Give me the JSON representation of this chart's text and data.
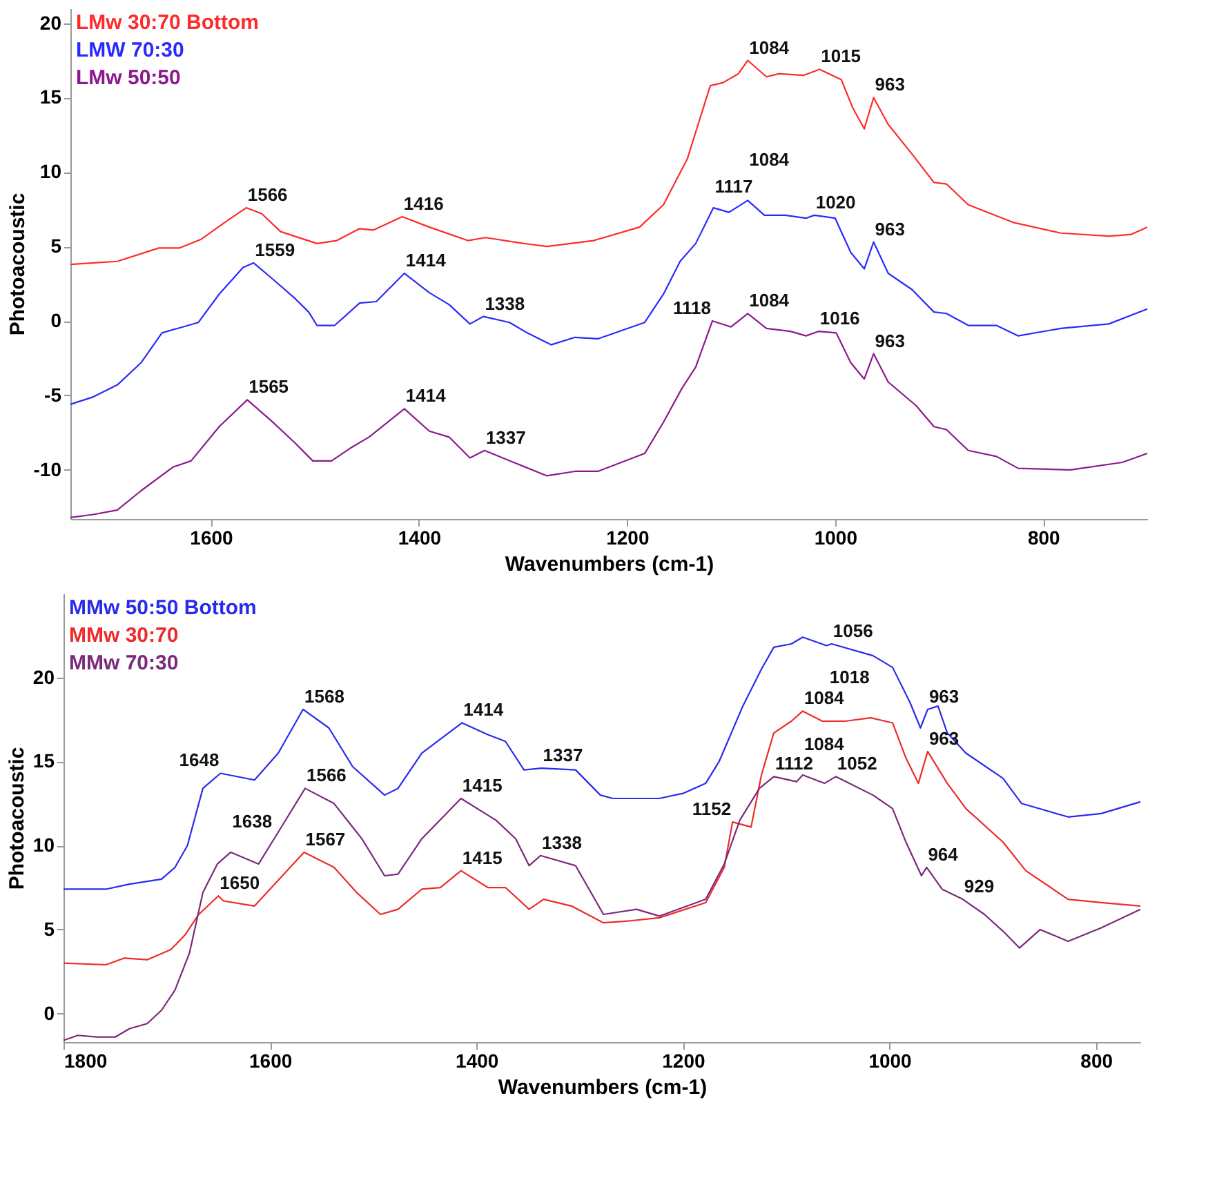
{
  "chart_data": [
    {
      "type": "line",
      "xlabel": "Wavenumbers (cm-1)",
      "ylabel": "Photoacoustic",
      "xlim": [
        1735,
        700
      ],
      "ylim": [
        -13.3,
        21
      ],
      "xticks": [
        1600,
        1400,
        1200,
        1000,
        800
      ],
      "yticks": [
        -10,
        -5,
        0,
        5,
        10,
        15,
        20
      ],
      "legend": "top left",
      "series": [
        {
          "name": "LMw 30:70 Bottom",
          "color": "#ff2a2a",
          "x": [
            1735,
            1690,
            1650,
            1630,
            1609,
            1587,
            1566,
            1551,
            1533,
            1498,
            1479,
            1457,
            1444,
            1416,
            1390,
            1353,
            1336,
            1299,
            1277,
            1232,
            1188,
            1165,
            1142,
            1120,
            1108,
            1093,
            1084,
            1066,
            1054,
            1030,
            1015,
            994,
            983,
            972,
            963,
            949,
            926,
            905,
            893,
            872,
            828,
            783,
            737,
            716,
            700
          ],
          "values": [
            3.8,
            4.0,
            4.9,
            4.9,
            5.5,
            6.6,
            7.6,
            7.2,
            6.0,
            5.2,
            5.4,
            6.2,
            6.1,
            7.0,
            6.3,
            5.4,
            5.6,
            5.2,
            5.0,
            5.4,
            6.3,
            7.8,
            10.9,
            15.8,
            16.0,
            16.6,
            17.5,
            16.4,
            16.6,
            16.5,
            16.9,
            16.2,
            14.3,
            12.9,
            15.0,
            13.2,
            11.2,
            9.3,
            9.2,
            7.8,
            6.6,
            5.9,
            5.7,
            5.8,
            6.3
          ]
        },
        {
          "name": "LMW 70:30",
          "color": "#2a2aff",
          "x": [
            1735,
            1713,
            1690,
            1667,
            1647,
            1627,
            1612,
            1592,
            1569,
            1559,
            1542,
            1519,
            1506,
            1498,
            1481,
            1457,
            1441,
            1414,
            1390,
            1371,
            1351,
            1338,
            1313,
            1296,
            1273,
            1250,
            1228,
            1183,
            1165,
            1149,
            1134,
            1117,
            1102,
            1084,
            1068,
            1048,
            1028,
            1020,
            1000,
            985,
            972,
            963,
            949,
            926,
            905,
            893,
            872,
            845,
            824,
            783,
            737,
            700
          ],
          "values": [
            -5.6,
            -5.1,
            -4.3,
            -2.8,
            -0.8,
            -0.4,
            -0.1,
            1.8,
            3.6,
            3.9,
            2.9,
            1.5,
            0.6,
            -0.3,
            -0.3,
            1.2,
            1.3,
            3.2,
            1.9,
            1.1,
            -0.2,
            0.3,
            -0.1,
            -0.8,
            -1.6,
            -1.1,
            -1.2,
            -0.1,
            1.8,
            4.0,
            5.2,
            7.6,
            7.3,
            8.1,
            7.1,
            7.1,
            6.9,
            7.1,
            6.9,
            4.6,
            3.5,
            5.3,
            3.2,
            2.1,
            0.6,
            0.5,
            -0.3,
            -0.3,
            -1.0,
            -0.5,
            -0.2,
            0.8
          ]
        },
        {
          "name": "LMw 50:50",
          "color": "#8b1a8b",
          "x": [
            1735,
            1713,
            1690,
            1667,
            1636,
            1619,
            1592,
            1565,
            1542,
            1519,
            1502,
            1484,
            1465,
            1448,
            1414,
            1390,
            1371,
            1351,
            1337,
            1309,
            1277,
            1250,
            1228,
            1183,
            1165,
            1147,
            1134,
            1118,
            1100,
            1084,
            1066,
            1043,
            1028,
            1016,
            999,
            985,
            972,
            963,
            949,
            922,
            905,
            893,
            872,
            845,
            824,
            774,
            724,
            700
          ],
          "values": [
            -13.2,
            -13.0,
            -12.7,
            -11.4,
            -9.8,
            -9.4,
            -7.1,
            -5.3,
            -6.7,
            -8.2,
            -9.4,
            -9.4,
            -8.5,
            -7.8,
            -5.9,
            -7.4,
            -7.8,
            -9.2,
            -8.7,
            -9.5,
            -10.4,
            -10.1,
            -10.1,
            -8.9,
            -6.8,
            -4.5,
            -3.1,
            0.0,
            -0.4,
            0.5,
            -0.5,
            -0.7,
            -1.0,
            -0.7,
            -0.8,
            -2.8,
            -3.9,
            -2.2,
            -4.1,
            -5.7,
            -7.1,
            -7.3,
            -8.7,
            -9.1,
            -9.9,
            -10.0,
            -9.5,
            -8.9
          ]
        }
      ],
      "annotations": [
        {
          "text": "1566",
          "x": 1566,
          "y": 7.6
        },
        {
          "text": "1416",
          "x": 1416,
          "y": 7.0
        },
        {
          "text": "1084",
          "x": 1084,
          "y": 17.5
        },
        {
          "text": "1015",
          "x": 1015,
          "y": 16.9
        },
        {
          "text": "963",
          "x": 963,
          "y": 15.0
        },
        {
          "text": "1559",
          "x": 1559,
          "y": 3.9
        },
        {
          "text": "1414",
          "x": 1414,
          "y": 3.2
        },
        {
          "text": "1338",
          "x": 1338,
          "y": 0.3
        },
        {
          "text": "1117",
          "x": 1117,
          "y": 7.6
        },
        {
          "text": "1084",
          "x": 1084,
          "y": 8.1
        },
        {
          "text": "1020",
          "x": 1020,
          "y": 7.1
        },
        {
          "text": "963",
          "x": 963,
          "y": 5.3
        },
        {
          "text": "1565",
          "x": 1565,
          "y": -5.3
        },
        {
          "text": "1414",
          "x": 1414,
          "y": -5.9
        },
        {
          "text": "1337",
          "x": 1337,
          "y": -8.7
        },
        {
          "text": "1118",
          "x": 1118,
          "y": 0.0
        },
        {
          "text": "1084",
          "x": 1084,
          "y": 0.5
        },
        {
          "text": "1016",
          "x": 1016,
          "y": -0.7
        },
        {
          "text": "963",
          "x": 963,
          "y": -2.2
        }
      ]
    },
    {
      "type": "line",
      "xlabel": "Wavenumbers (cm-1)",
      "ylabel": "Photoacoustic",
      "xlim": [
        1800,
        757
      ],
      "ylim": [
        -1.7,
        25
      ],
      "xticks": [
        1800,
        1600,
        1400,
        1200,
        1000,
        800
      ],
      "yticks": [
        0,
        5,
        10,
        15,
        20
      ],
      "legend": "top left",
      "series": [
        {
          "name": "MMw 50:50 Bottom",
          "color": "#2a2aee",
          "x": [
            1800,
            1759,
            1736,
            1705,
            1692,
            1680,
            1665,
            1648,
            1615,
            1592,
            1568,
            1543,
            1520,
            1489,
            1476,
            1453,
            1414,
            1389,
            1372,
            1354,
            1337,
            1304,
            1280,
            1268,
            1223,
            1200,
            1178,
            1165,
            1142,
            1124,
            1112,
            1095,
            1084,
            1061,
            1056,
            1016,
            997,
            980,
            970,
            963,
            953,
            944,
            926,
            890,
            872,
            827,
            795,
            757
          ],
          "values": [
            7.4,
            7.4,
            7.7,
            8.0,
            8.7,
            10.0,
            13.4,
            14.3,
            13.9,
            15.5,
            18.1,
            17.0,
            14.7,
            13.0,
            13.4,
            15.5,
            17.3,
            16.6,
            16.2,
            14.5,
            14.6,
            14.5,
            13.0,
            12.8,
            12.8,
            13.1,
            13.7,
            15.0,
            18.3,
            20.5,
            21.8,
            22.0,
            22.4,
            21.9,
            22.0,
            21.3,
            20.6,
            18.5,
            17.0,
            18.1,
            18.3,
            16.7,
            15.5,
            14.0,
            12.5,
            11.7,
            11.9,
            12.6
          ]
        },
        {
          "name": "MMw 30:70",
          "color": "#ee2a2a",
          "x": [
            1800,
            1759,
            1741,
            1719,
            1696,
            1682,
            1669,
            1650,
            1645,
            1615,
            1588,
            1567,
            1538,
            1516,
            1493,
            1476,
            1453,
            1435,
            1415,
            1389,
            1372,
            1349,
            1335,
            1308,
            1277,
            1254,
            1223,
            1178,
            1160,
            1152,
            1134,
            1124,
            1112,
            1095,
            1084,
            1065,
            1043,
            1018,
            997,
            984,
            972,
            963,
            944,
            926,
            890,
            868,
            827,
            795,
            757
          ],
          "values": [
            3.0,
            2.9,
            3.3,
            3.2,
            3.8,
            4.7,
            5.9,
            7.0,
            6.7,
            6.4,
            8.2,
            9.6,
            8.7,
            7.2,
            5.9,
            6.2,
            7.4,
            7.5,
            8.5,
            7.5,
            7.5,
            6.2,
            6.8,
            6.4,
            5.4,
            5.5,
            5.7,
            6.6,
            8.7,
            11.4,
            11.1,
            14.2,
            16.7,
            17.4,
            18.0,
            17.4,
            17.4,
            17.6,
            17.3,
            15.2,
            13.7,
            15.6,
            13.7,
            12.2,
            10.2,
            8.5,
            6.8,
            6.6,
            6.4
          ]
        },
        {
          "name": "MMw 70:30",
          "color": "#7a2a7a",
          "x": [
            1800,
            1786,
            1768,
            1750,
            1736,
            1719,
            1705,
            1692,
            1678,
            1665,
            1651,
            1638,
            1611,
            1588,
            1566,
            1538,
            1511,
            1489,
            1476,
            1453,
            1415,
            1381,
            1362,
            1349,
            1338,
            1304,
            1277,
            1245,
            1223,
            1178,
            1160,
            1145,
            1126,
            1112,
            1090,
            1084,
            1063,
            1052,
            1016,
            997,
            984,
            969,
            964,
            949,
            929,
            908,
            890,
            874,
            854,
            827,
            795,
            757
          ],
          "values": [
            -1.6,
            -1.3,
            -1.4,
            -1.4,
            -0.9,
            -0.6,
            0.2,
            1.4,
            3.6,
            7.2,
            8.9,
            9.6,
            8.9,
            11.2,
            13.4,
            12.5,
            10.4,
            8.2,
            8.3,
            10.4,
            12.8,
            11.5,
            10.4,
            8.8,
            9.4,
            8.8,
            5.9,
            6.2,
            5.8,
            6.8,
            8.9,
            11.5,
            13.4,
            14.1,
            13.8,
            14.2,
            13.7,
            14.1,
            13.0,
            12.2,
            10.2,
            8.2,
            8.7,
            7.4,
            6.8,
            5.9,
            4.9,
            3.9,
            5.0,
            4.3,
            5.1,
            6.2
          ]
        }
      ],
      "annotations": [
        {
          "text": "1568",
          "x": 1568,
          "y": 18.1
        },
        {
          "text": "1648",
          "x": 1648,
          "y": 14.3
        },
        {
          "text": "1414",
          "x": 1414,
          "y": 17.3
        },
        {
          "text": "1337",
          "x": 1337,
          "y": 14.6
        },
        {
          "text": "1056",
          "x": 1056,
          "y": 22.0
        },
        {
          "text": "963",
          "x": 963,
          "y": 18.1
        },
        {
          "text": "1566",
          "x": 1566,
          "y": 13.4
        },
        {
          "text": "1415",
          "x": 1415,
          "y": 12.8
        },
        {
          "text": "1084",
          "x": 1084,
          "y": 18.0
        },
        {
          "text": "1018",
          "x": 1018,
          "y": 17.6
        },
        {
          "text": "963",
          "x": 963,
          "y": 15.6
        },
        {
          "text": "1638",
          "x": 1638,
          "y": 9.6
        },
        {
          "text": "1567",
          "x": 1567,
          "y": 9.6
        },
        {
          "text": "1415",
          "x": 1415,
          "y": 8.5
        },
        {
          "text": "1650",
          "x": 1650,
          "y": 7.0
        },
        {
          "text": "1338",
          "x": 1338,
          "y": 9.4
        },
        {
          "text": "1112",
          "x": 1112,
          "y": 14.1
        },
        {
          "text": "1084",
          "x": 1084,
          "y": 14.2
        },
        {
          "text": "1052",
          "x": 1052,
          "y": 14.1
        },
        {
          "text": "1152",
          "x": 1152,
          "y": 11.4
        },
        {
          "text": "964",
          "x": 964,
          "y": 8.7
        },
        {
          "text": "929",
          "x": 929,
          "y": 6.8
        }
      ]
    }
  ]
}
